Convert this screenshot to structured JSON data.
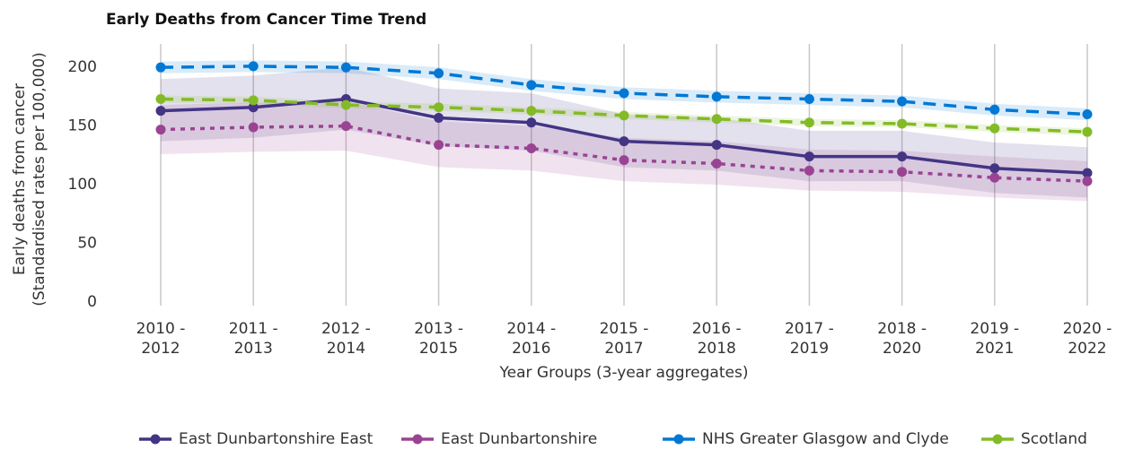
{
  "chart_data": {
    "type": "line",
    "title": "Early Deaths from Cancer Time Trend",
    "ylabel": [
      "Early deaths from cancer",
      "(Standardised rates per 100,000)"
    ],
    "xlabel": "Year Groups (3-year aggregates)",
    "categories": [
      "2010 - 2012",
      "2011 - 2013",
      "2012 - 2014",
      "2013 - 2015",
      "2014 - 2016",
      "2015 - 2017",
      "2016 - 2018",
      "2017 - 2019",
      "2018 - 2020",
      "2019 - 2021",
      "2020 - 2022"
    ],
    "ylim": [
      0,
      220
    ],
    "yticks": [
      0,
      50,
      100,
      150,
      200
    ],
    "grid": "x",
    "legend": "bottom",
    "series": [
      {
        "name": "East Dunbartonshire East",
        "color": "#433584",
        "dash": "solid",
        "values": [
          163,
          166,
          173,
          157,
          153,
          137,
          134,
          124,
          124,
          114,
          110
        ],
        "upper": [
          190,
          193,
          200,
          182,
          178,
          160,
          157,
          146,
          146,
          136,
          132
        ],
        "lower": [
          137,
          140,
          147,
          133,
          129,
          115,
          112,
          103,
          103,
          93,
          89
        ]
      },
      {
        "name": "East Dunbartonshire",
        "color": "#9b4393",
        "dash": "dotted",
        "values": [
          147,
          149,
          150,
          134,
          131,
          121,
          118,
          112,
          111,
          106,
          103
        ],
        "upper": [
          168,
          170,
          171,
          154,
          150,
          140,
          137,
          130,
          129,
          124,
          120
        ],
        "lower": [
          126,
          128,
          129,
          115,
          112,
          103,
          100,
          95,
          94,
          89,
          86
        ]
      },
      {
        "name": "NHS Greater Glasgow and Clyde",
        "color": "#0078d4",
        "dash": "dashed",
        "values": [
          200,
          201,
          200,
          195,
          185,
          178,
          175,
          173,
          171,
          164,
          160
        ],
        "upper": [
          205,
          206,
          205,
          200,
          190,
          183,
          180,
          178,
          176,
          169,
          165
        ],
        "lower": [
          195,
          196,
          195,
          190,
          180,
          173,
          170,
          168,
          166,
          159,
          155
        ]
      },
      {
        "name": "Scotland",
        "color": "#83bb26",
        "dash": "dashed",
        "values": [
          173,
          172,
          168,
          166,
          163,
          159,
          156,
          153,
          152,
          148,
          145
        ],
        "upper": [
          176,
          175,
          171,
          169,
          166,
          162,
          159,
          156,
          155,
          151,
          148
        ],
        "lower": [
          170,
          169,
          165,
          163,
          160,
          156,
          153,
          150,
          149,
          145,
          142
        ]
      }
    ]
  }
}
